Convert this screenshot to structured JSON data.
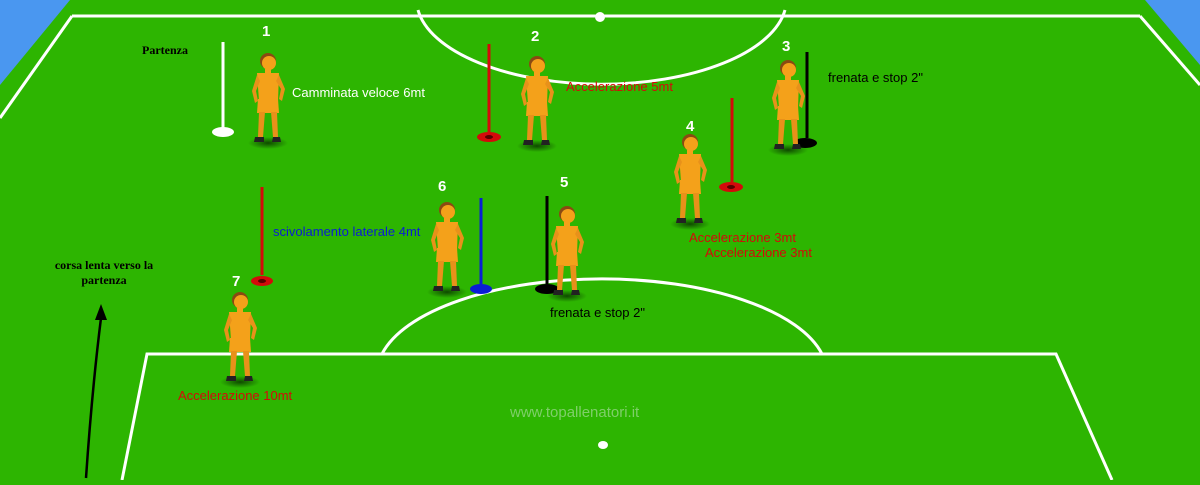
{
  "colors": {
    "pitch": "#2db501",
    "sky": "#4a97f0",
    "line": "#ffffff",
    "player": "#f4a11a",
    "red": "#d40a0a",
    "blue": "#0a1ed4",
    "black": "#000000"
  },
  "labels": {
    "start": "Partenza",
    "n1": "1",
    "n2": "2",
    "n3": "3",
    "n4": "4",
    "n5": "5",
    "n6": "6",
    "n7": "7",
    "fast_walk": "Camminata veloce 6mt",
    "accel_5": "Accelerazione 5mt",
    "brake_stop_top": "frenata e stop 2\"",
    "accel_3_a": "Accelerazione 3mt",
    "accel_3_b": "Accelerazione 3mt",
    "lateral_slide": "scivolamento laterale 4mt",
    "brake_stop_bottom": "frenata e stop 2\"",
    "slow_run_line1": "corsa lenta verso la",
    "slow_run_line2": "partenza",
    "accel_10": "Accelerazione 10mt",
    "watermark": "www.topallenatori.it"
  }
}
